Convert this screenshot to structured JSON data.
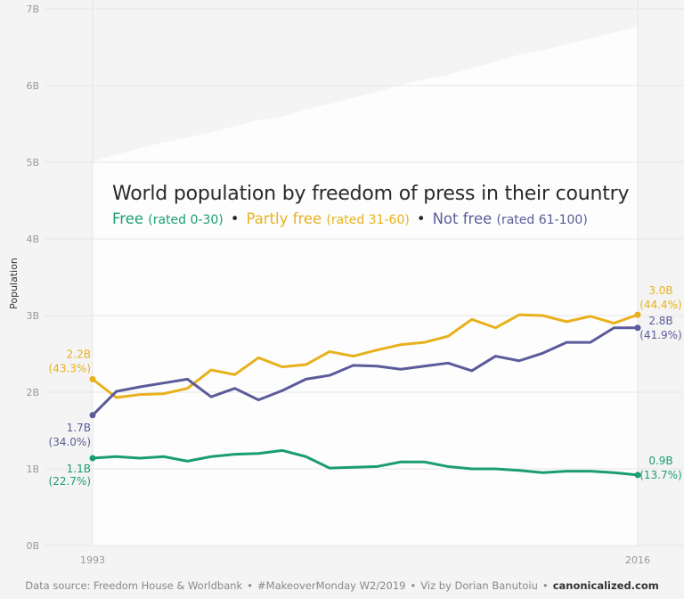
{
  "chart_data": {
    "type": "line",
    "title": "World population by freedom of press in their country",
    "ylabel": "Population",
    "ylim": [
      0,
      7
    ],
    "yticks": [
      "0B",
      "1B",
      "2B",
      "3B",
      "4B",
      "5B",
      "6B",
      "7B"
    ],
    "xticks": [
      "1993",
      "2016"
    ],
    "grid": true,
    "x": [
      1993,
      1994,
      1995,
      1996,
      1997,
      1998,
      1999,
      2000,
      2001,
      2002,
      2003,
      2004,
      2005,
      2006,
      2007,
      2008,
      2009,
      2010,
      2011,
      2012,
      2013,
      2014,
      2015,
      2016
    ],
    "series": [
      {
        "name": "Free",
        "qualifier": "(rated 0-30)",
        "color": "#1a9e6e",
        "values": [
          1.14,
          1.16,
          1.14,
          1.16,
          1.1,
          1.16,
          1.19,
          1.2,
          1.24,
          1.16,
          1.01,
          1.02,
          1.03,
          1.09,
          1.09,
          1.03,
          1.0,
          1.0,
          0.98,
          0.95,
          0.97,
          0.97,
          0.95,
          0.92
        ],
        "start_label": "1.1B",
        "start_pct": "(22.7%)",
        "end_label": "0.9B",
        "end_pct": "(13.7%)"
      },
      {
        "name": "Partly free",
        "qualifier": "(rated 31-60)",
        "color": "#e8b11c",
        "values": [
          2.17,
          1.93,
          1.97,
          1.98,
          2.05,
          2.29,
          2.23,
          2.45,
          2.33,
          2.36,
          2.53,
          2.47,
          2.55,
          2.62,
          2.65,
          2.73,
          2.95,
          2.84,
          3.01,
          3.0,
          2.92,
          2.99,
          2.9,
          3.01
        ],
        "start_label": "2.2B",
        "start_pct": "(43.3%)",
        "end_label": "3.0B",
        "end_pct": "(44.4%)"
      },
      {
        "name": "Not free",
        "qualifier": "(rated 61-100)",
        "color": "#5b5b9a",
        "values": [
          1.7,
          2.01,
          2.07,
          2.12,
          2.17,
          1.94,
          2.05,
          1.9,
          2.02,
          2.17,
          2.22,
          2.35,
          2.34,
          2.3,
          2.34,
          2.38,
          2.28,
          2.47,
          2.41,
          2.51,
          2.65,
          2.65,
          2.84,
          2.84
        ],
        "start_label": "1.7B",
        "start_pct": "(34.0%)",
        "end_label": "2.8B",
        "end_pct": "(41.9%)"
      }
    ]
  },
  "legend_separator": "•",
  "footer": {
    "source": "Data source: Freedom House & Worldbank",
    "tag": "#MakeoverMonday W2/2019",
    "author": "Viz by Dorian Banutoiu",
    "site": "canonicalized.com",
    "separator": "•"
  }
}
